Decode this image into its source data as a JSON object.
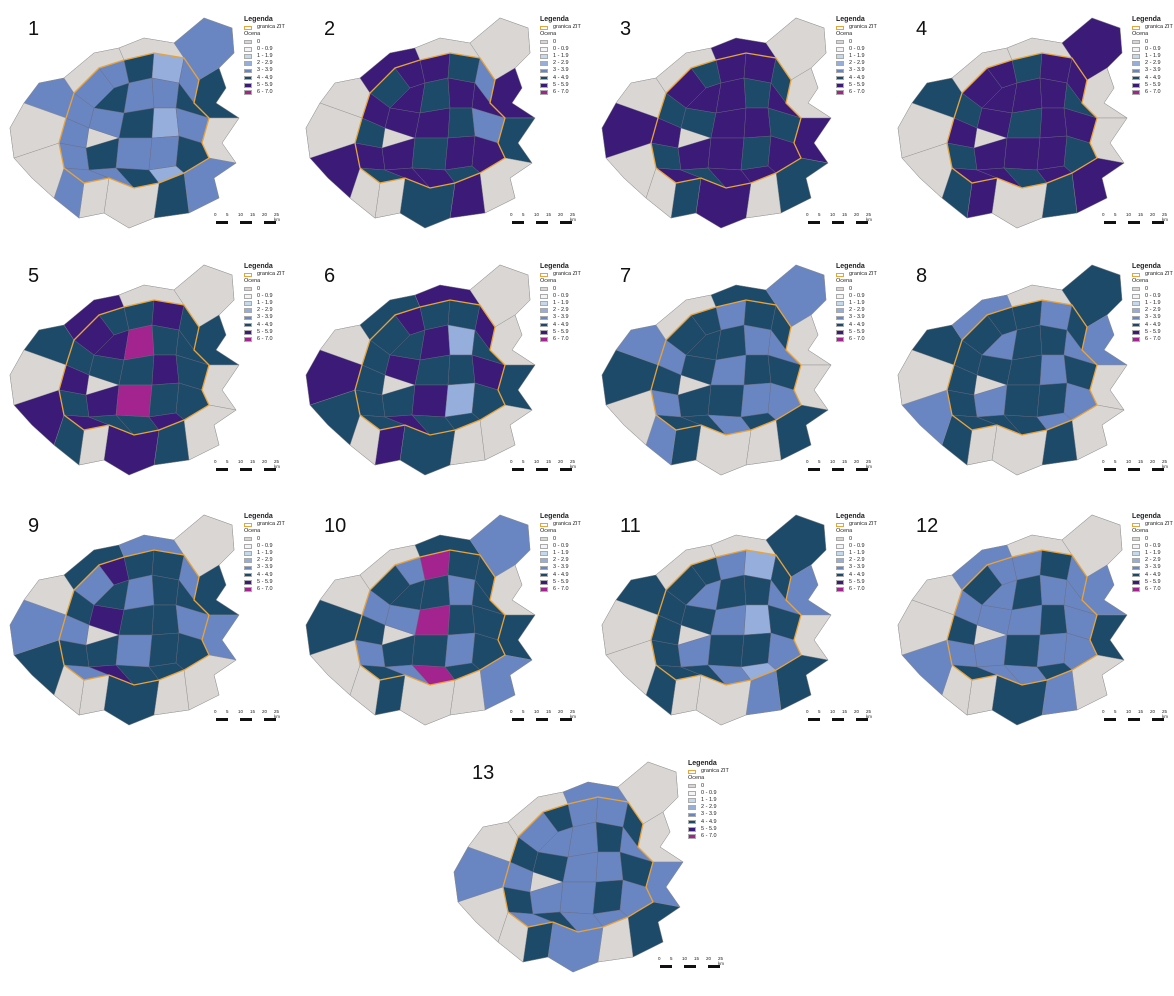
{
  "legend": {
    "title": "Legenda",
    "border_label": "granica ZIT",
    "rating_title": "Ocena",
    "classes": [
      {
        "label": "0",
        "color": "#d9d6d3"
      },
      {
        "label": "0 - 0.9",
        "color": "#f4f4f6"
      },
      {
        "label": "1 - 1.9",
        "color": "#c5d9ee"
      },
      {
        "label": "2 - 2.9",
        "color": "#95aedb"
      },
      {
        "label": "3 - 3.9",
        "color": "#6986c2"
      },
      {
        "label": "4 - 4.9",
        "color": "#1e4a6a"
      },
      {
        "label": "5 - 5.9",
        "color": "#3b1a78"
      },
      {
        "label": "6 - 7.0",
        "color": "#a3248f"
      }
    ],
    "border_color": "#e8a33a"
  },
  "scale": {
    "ticks": [
      "0",
      "5",
      "10",
      "15",
      "20",
      "25 km"
    ]
  },
  "panels": [
    {
      "number": "1",
      "dominant": "3 - 3.9",
      "secondary": "4 - 4.9"
    },
    {
      "number": "2",
      "dominant": "5 - 5.9",
      "secondary": "4 - 4.9"
    },
    {
      "number": "3",
      "dominant": "5 - 5.9",
      "secondary": "4 - 4.9"
    },
    {
      "number": "4",
      "dominant": "5 - 5.9",
      "secondary": "4 - 4.9"
    },
    {
      "number": "5",
      "dominant": "4 - 4.9",
      "secondary": "5 - 5.9"
    },
    {
      "number": "6",
      "dominant": "4 - 4.9",
      "secondary": "5 - 5.9"
    },
    {
      "number": "7",
      "dominant": "4 - 4.9",
      "secondary": "3 - 3.9"
    },
    {
      "number": "8",
      "dominant": "4 - 4.9",
      "secondary": "3 - 3.9"
    },
    {
      "number": "9",
      "dominant": "4 - 4.9",
      "secondary": "3 - 3.9"
    },
    {
      "number": "10",
      "dominant": "4 - 4.9",
      "secondary": "3 - 3.9"
    },
    {
      "number": "11",
      "dominant": "4 - 4.9",
      "secondary": "3 - 3.9"
    },
    {
      "number": "12",
      "dominant": "3 - 3.9",
      "secondary": "4 - 4.9"
    },
    {
      "number": "13",
      "dominant": "3 - 3.9",
      "secondary": "4 - 4.9"
    }
  ]
}
